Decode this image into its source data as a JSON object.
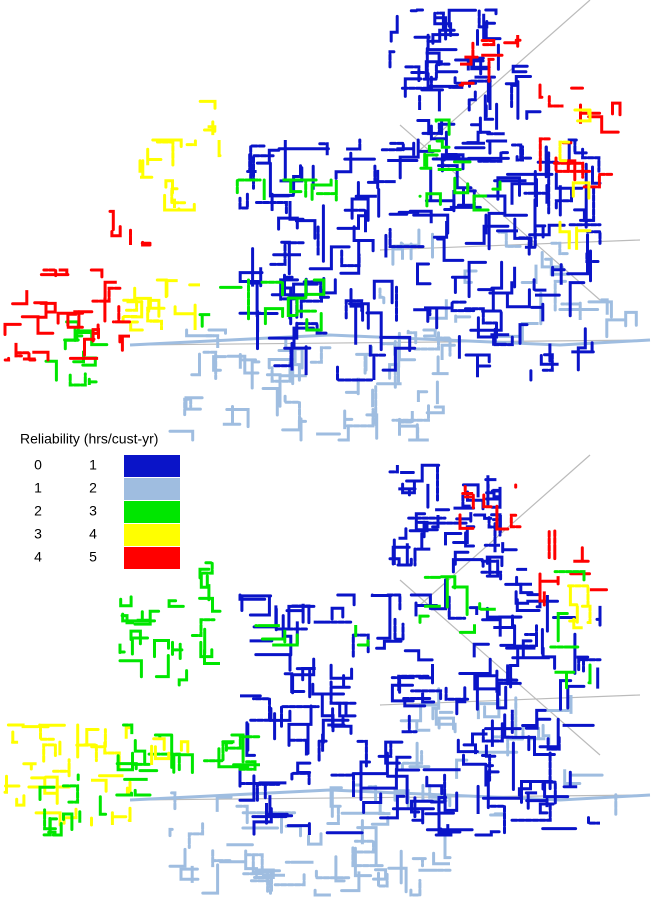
{
  "legend": {
    "title": "Reliability (hrs/cust-yr)",
    "rows": [
      {
        "from": 0,
        "to": 1,
        "color": "#0a14c8"
      },
      {
        "from": 1,
        "to": 2,
        "color": "#9fbde0"
      },
      {
        "from": 2,
        "to": 3,
        "color": "#00e600"
      },
      {
        "from": 3,
        "to": 4,
        "color": "#ffff00"
      },
      {
        "from": 4,
        "to": 5,
        "color": "#ff0000"
      }
    ]
  }
}
